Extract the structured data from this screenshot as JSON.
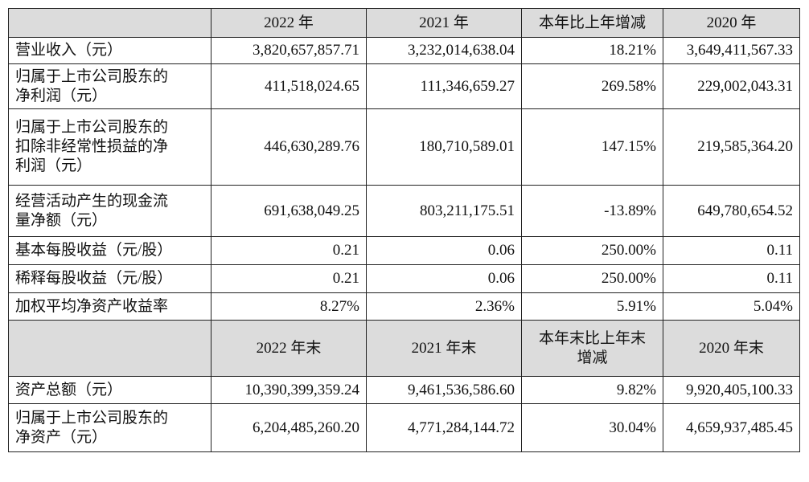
{
  "table": {
    "header1": [
      "",
      "2022 年",
      "2021 年",
      "本年比上年增减",
      "2020 年"
    ],
    "rows1": [
      [
        "营业收入（元）",
        "3,820,657,857.71",
        "3,232,014,638.04",
        "18.21%",
        "3,649,411,567.33"
      ],
      [
        "归属于上市公司股东的\n净利润（元）",
        "411,518,024.65",
        "111,346,659.27",
        "269.58%",
        "229,002,043.31"
      ],
      [
        "归属于上市公司股东的\n扣除非经常性损益的净\n利润（元）",
        "446,630,289.76",
        "180,710,589.01",
        "147.15%",
        "219,585,364.20"
      ],
      [
        "经营活动产生的现金流\n量净额（元）",
        "691,638,049.25",
        "803,211,175.51",
        "-13.89%",
        "649,780,654.52"
      ],
      [
        "基本每股收益（元/股）",
        "0.21",
        "0.06",
        "250.00%",
        "0.11"
      ],
      [
        "稀释每股收益（元/股）",
        "0.21",
        "0.06",
        "250.00%",
        "0.11"
      ],
      [
        "加权平均净资产收益率",
        "8.27%",
        "2.36%",
        "5.91%",
        "5.04%"
      ]
    ],
    "header2": [
      "",
      "2022 年末",
      "2021 年末",
      "本年末比上年末\n增减",
      "2020 年末"
    ],
    "rows2": [
      [
        "资产总额（元）",
        "10,390,399,359.24",
        "9,461,536,586.60",
        "9.82%",
        "9,920,405,100.33"
      ],
      [
        "归属于上市公司股东的\n净资产（元）",
        "6,204,485,260.20",
        "4,771,284,144.72",
        "30.04%",
        "4,659,937,485.45"
      ]
    ]
  }
}
